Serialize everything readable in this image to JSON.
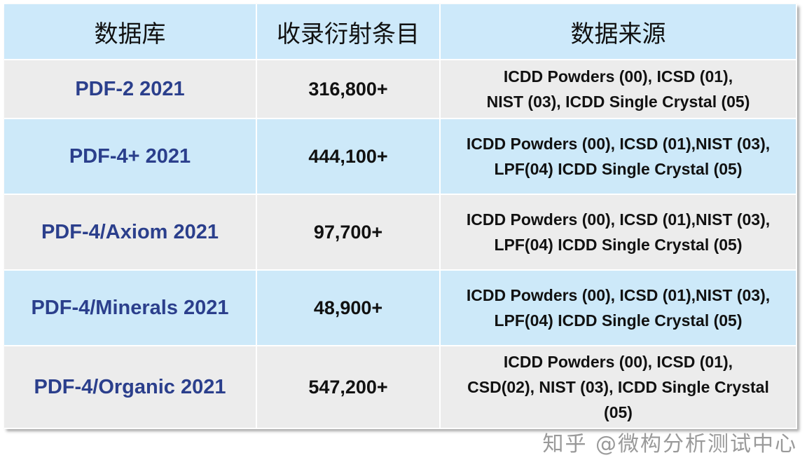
{
  "headers": [
    "数据库",
    "收录衍射条目",
    "数据来源"
  ],
  "rows": [
    {
      "name": "PDF-2 2021",
      "count": "316,800+",
      "source": "ICDD Powders (00), ICSD (01),\nNIST (03), ICDD Single Crystal (05)"
    },
    {
      "name": "PDF-4+ 2021",
      "count": "444,100+",
      "source": "ICDD Powders (00), ICSD (01),NIST (03),\nLPF(04) ICDD Single Crystal (05)"
    },
    {
      "name": "PDF-4/Axiom 2021",
      "count": "97,700+",
      "source": "ICDD Powders (00), ICSD (01),NIST (03),\nLPF(04) ICDD Single Crystal (05)"
    },
    {
      "name": "PDF-4/Minerals 2021",
      "count": "48,900+",
      "source": "ICDD Powders (00), ICSD (01),NIST (03),\nLPF(04) ICDD Single Crystal (05)"
    },
    {
      "name": "PDF-4/Organic 2021",
      "count": "547,200+",
      "source": "ICDD Powders (00), ICSD (01),\nCSD(02), NIST (03), ICDD Single Crystal\n(05)"
    }
  ],
  "watermark": "知乎 @微构分析测试中心",
  "colors": {
    "header_bg": "#cde9fa",
    "row_gray": "#ececec",
    "row_blue": "#cde9f9",
    "name_text": "#2b3f8c"
  }
}
